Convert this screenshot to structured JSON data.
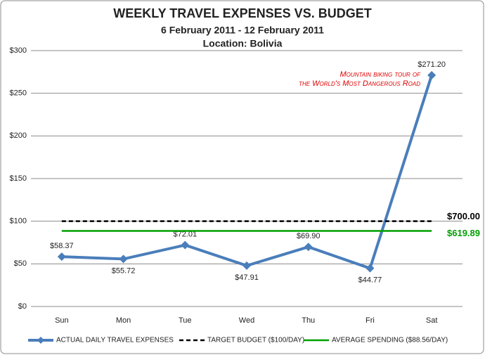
{
  "chart_data": {
    "type": "line",
    "title": "WEEKLY TRAVEL EXPENSES VS. BUDGET",
    "subtitle": "6 February 2011 - 12 February 2011",
    "location": "Location: Bolivia",
    "categories": [
      "Sun",
      "Mon",
      "Tue",
      "Wed",
      "Thu",
      "Fri",
      "Sat"
    ],
    "series": [
      {
        "name": "ACTUAL DAILY TRAVEL EXPENSES",
        "color": "#4a7ebb",
        "style": "solid-diamond",
        "values": [
          58.37,
          55.72,
          72.01,
          47.91,
          69.9,
          44.77,
          271.2
        ],
        "value_labels": [
          "$58.37",
          "$55.72",
          "$72.01",
          "$47.91",
          "$69.90",
          "$44.77",
          "$271.20"
        ]
      },
      {
        "name": "TARGET BUDGET ($100/DAY)",
        "color": "#000000",
        "style": "dashed",
        "values": [
          100,
          100,
          100,
          100,
          100,
          100,
          100
        ],
        "total_label": "$700.00"
      },
      {
        "name": "AVERAGE SPENDING ($88.56/DAY)",
        "color": "#00a000",
        "style": "solid",
        "values": [
          88.56,
          88.56,
          88.56,
          88.56,
          88.56,
          88.56,
          88.56
        ],
        "total_label": "$619.89"
      }
    ],
    "annotation": [
      "Mountain biking tour of",
      "the World's Most Dangerous Road"
    ],
    "annotation_color": "#e00000",
    "ylim": [
      0,
      300
    ],
    "yticks": [
      {
        "value": 0,
        "label": "$0"
      },
      {
        "value": 50,
        "label": "$50"
      },
      {
        "value": 100,
        "label": "$100"
      },
      {
        "value": 150,
        "label": "$150"
      },
      {
        "value": 200,
        "label": "$200"
      },
      {
        "value": 250,
        "label": "$250"
      },
      {
        "value": 300,
        "label": "$300"
      }
    ],
    "grid": true,
    "legend": "bottom"
  }
}
